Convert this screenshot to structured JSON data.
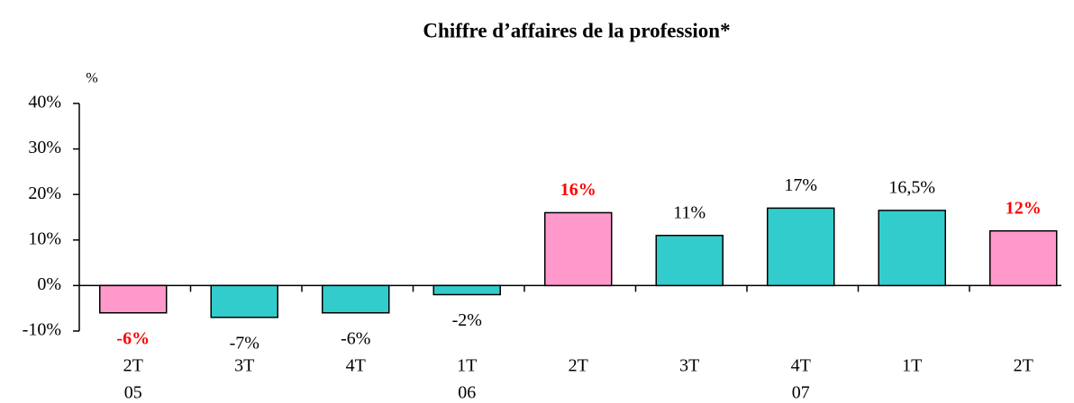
{
  "chart_data": {
    "type": "bar",
    "title": "Chiffre d’affaires de la profession*",
    "y_axis_label": "%",
    "categories": [
      "2T",
      "3T",
      "4T",
      "1T",
      "2T",
      "3T",
      "4T",
      "1T",
      "2T"
    ],
    "category_years": [
      "05",
      null,
      null,
      "06",
      null,
      null,
      "07",
      null,
      null
    ],
    "values": [
      -6,
      -7,
      -6,
      -2,
      16,
      11,
      17,
      16.5,
      12
    ],
    "value_labels": [
      "-6%",
      "-7%",
      "-6%",
      "-2%",
      "16%",
      "11%",
      "17%",
      "16,5%",
      "12%"
    ],
    "colors": [
      "#ff99cc",
      "#33cccc",
      "#33cccc",
      "#33cccc",
      "#ff99cc",
      "#33cccc",
      "#33cccc",
      "#33cccc",
      "#ff99cc"
    ],
    "label_colors": [
      "#ff0000",
      "#000000",
      "#000000",
      "#000000",
      "#ff0000",
      "#000000",
      "#000000",
      "#000000",
      "#ff0000"
    ],
    "label_bold": [
      true,
      false,
      false,
      false,
      true,
      false,
      false,
      false,
      true
    ],
    "ylim": [
      -10,
      40
    ],
    "yticks": [
      {
        "value": -10,
        "label": "-10%"
      },
      {
        "value": 0,
        "label": "0%"
      },
      {
        "value": 10,
        "label": "10%"
      },
      {
        "value": 20,
        "label": "20%"
      },
      {
        "value": 30,
        "label": "30%"
      },
      {
        "value": 40,
        "label": "40%"
      }
    ],
    "grid": false
  }
}
